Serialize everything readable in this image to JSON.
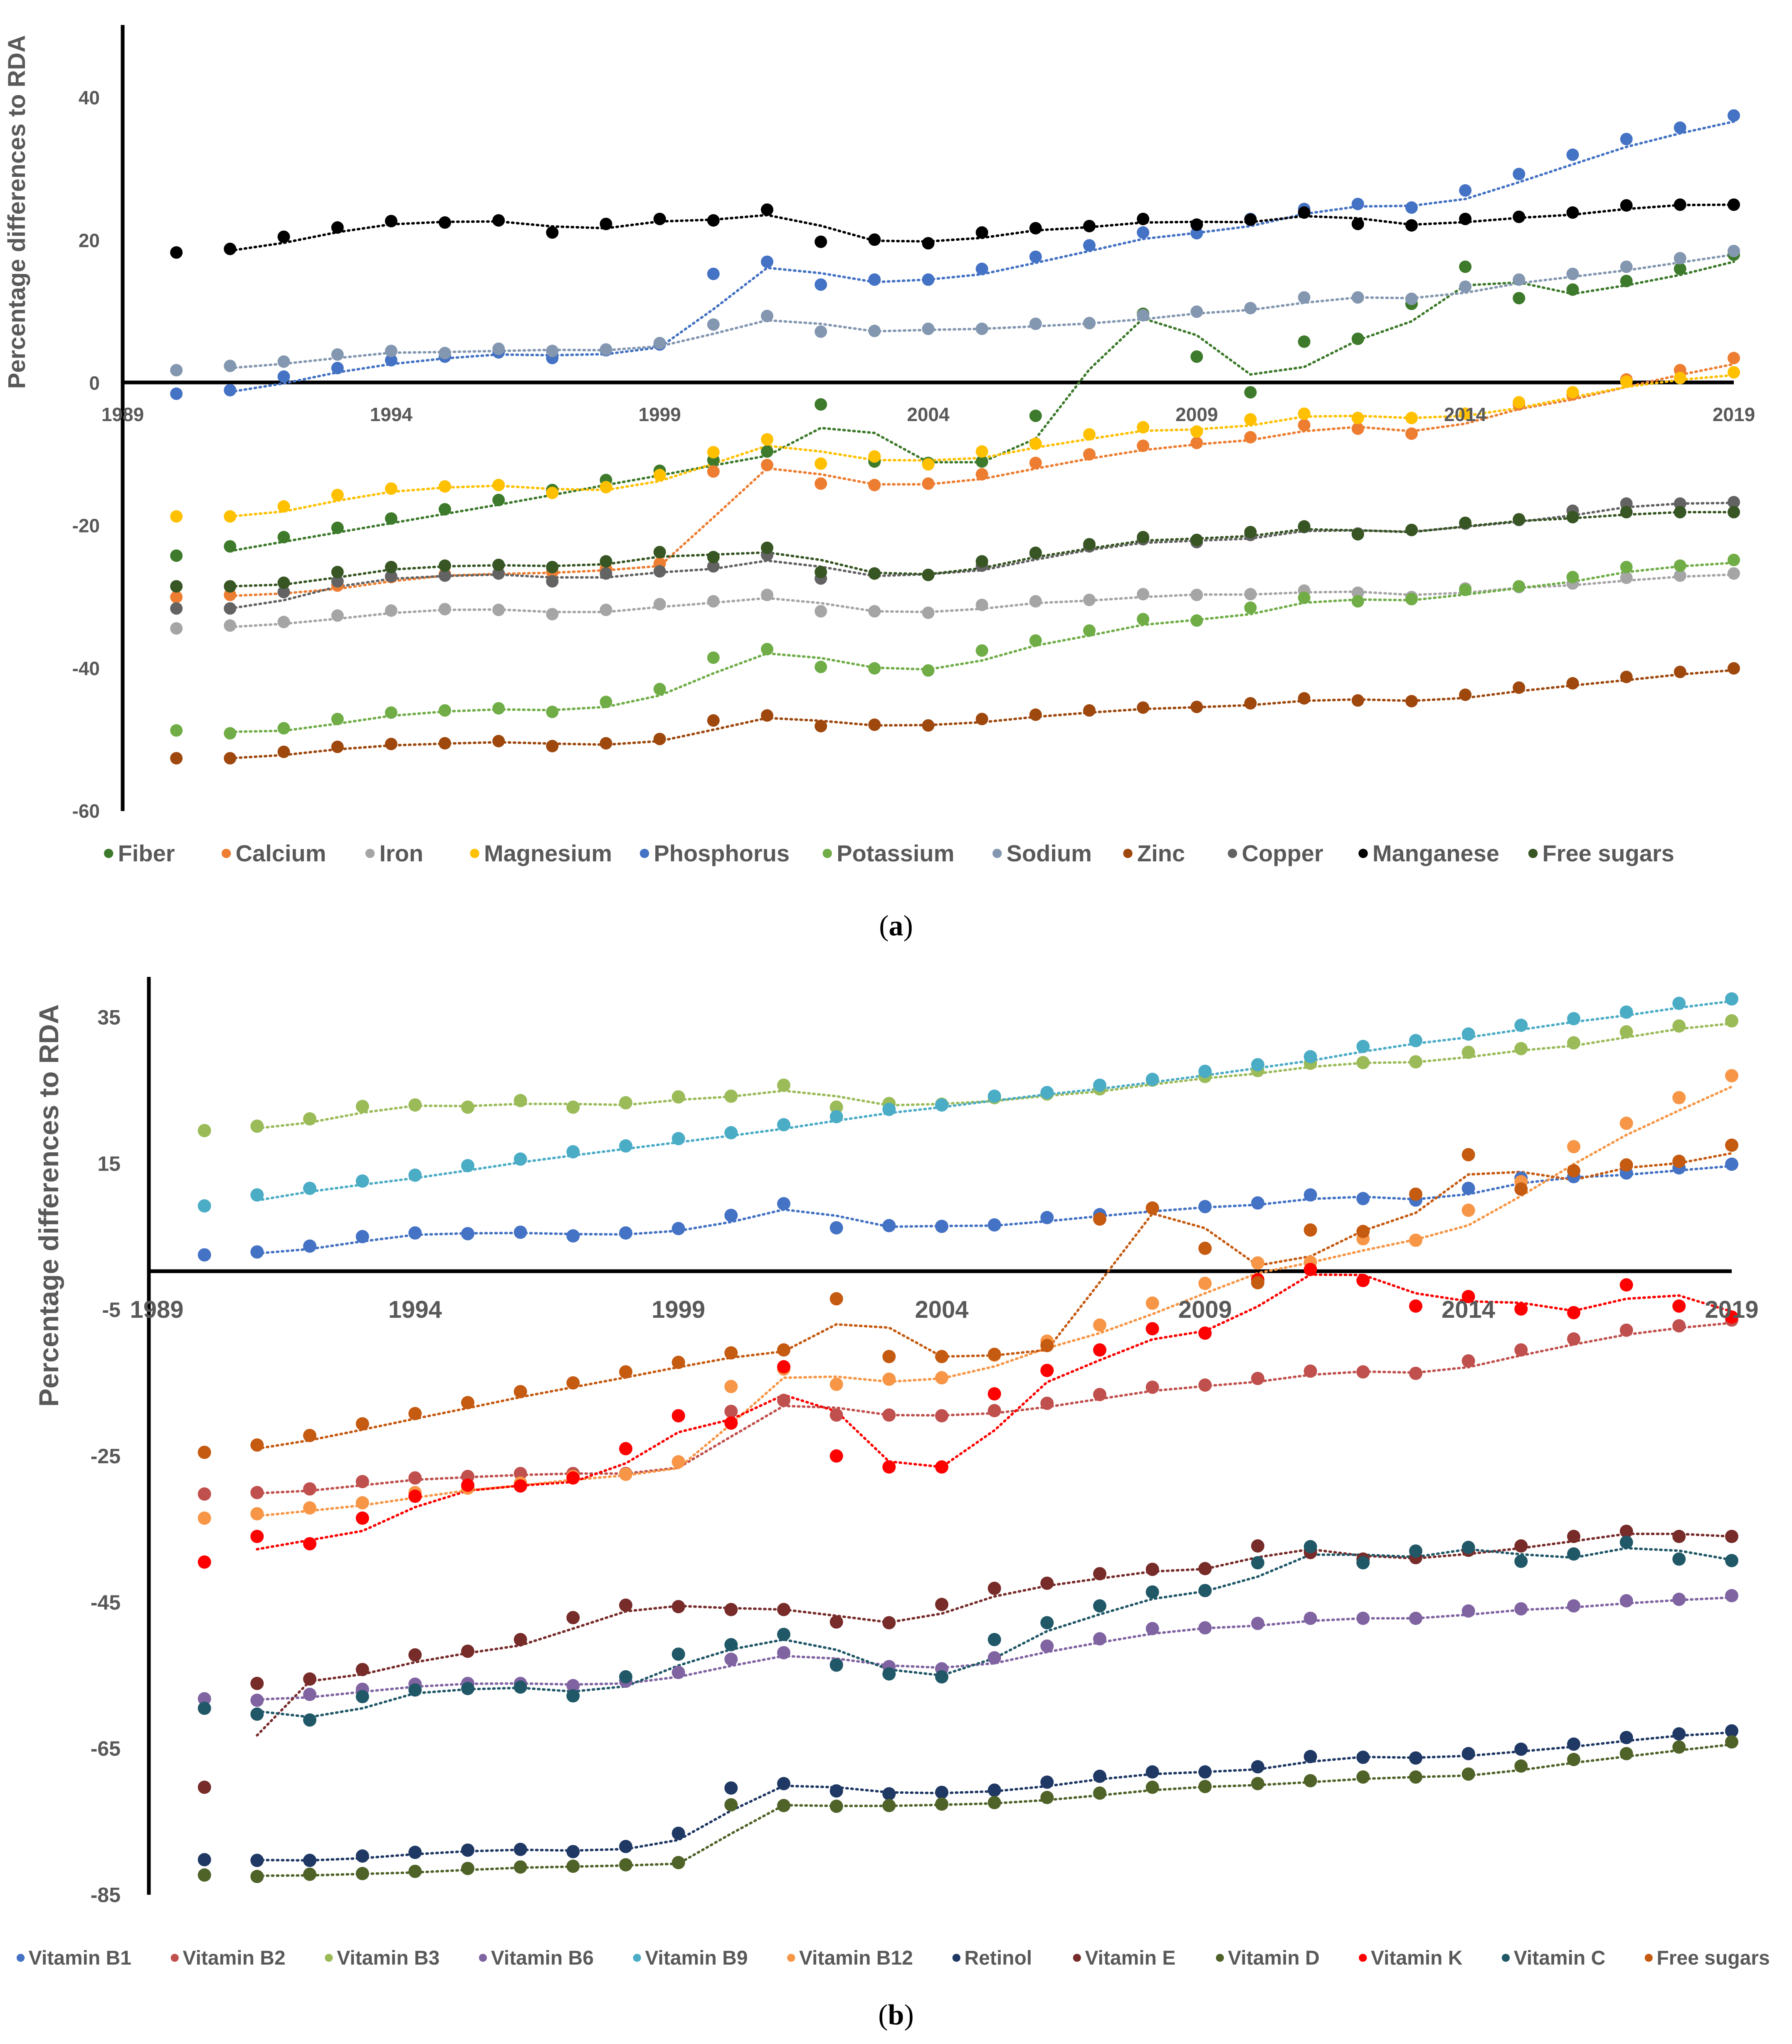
{
  "chart_data": [
    {
      "type": "scatter",
      "panel": "(a)",
      "caption_letter": "a",
      "ylabel": "Percentage differences to RDA",
      "xlim": [
        1989,
        2019
      ],
      "ylim": [
        -60,
        50
      ],
      "yticks": [
        40,
        20,
        0,
        -20,
        -40,
        -60
      ],
      "xticks": [
        1989,
        1994,
        1999,
        2004,
        2009,
        2014,
        2019
      ],
      "x": [
        1990,
        1991,
        1992,
        1993,
        1994,
        1995,
        1996,
        1997,
        1998,
        1999,
        2000,
        2001,
        2002,
        2003,
        2004,
        2005,
        2006,
        2007,
        2008,
        2009,
        2010,
        2011,
        2012,
        2013,
        2014,
        2015,
        2016,
        2017,
        2018,
        2019
      ],
      "trendline": "dotted",
      "legend": "bottom",
      "series": [
        {
          "name": "Fiber",
          "color": "#3d7a2b",
          "values": [
            -24.2,
            -22.9,
            -21.6,
            -20.3,
            -19,
            -17.7,
            -16.4,
            -15,
            -13.6,
            -12.3,
            -10.8,
            -9.6,
            -3,
            -11,
            -11.2,
            -11,
            -4.6,
            8.4,
            9.7,
            3.7,
            -1.3,
            5.8,
            6.2,
            11.1,
            16.3,
            11.9,
            13.1,
            14.3,
            16,
            18
          ]
        },
        {
          "name": "Calcium",
          "color": "#ed7d31",
          "values": [
            -30,
            -29.7,
            -29.3,
            -28.4,
            -27.2,
            -26.8,
            -26.7,
            -26.5,
            -26,
            -25.3,
            -12.4,
            -11.5,
            -14.1,
            -14.3,
            -14.1,
            -12.8,
            -11.2,
            -10,
            -8.8,
            -8.4,
            -7.6,
            -5.9,
            -6.4,
            -7.1,
            -4.3,
            -3,
            -1.6,
            0.5,
            1.8,
            3.5
          ]
        },
        {
          "name": "Iron",
          "color": "#a5a5a5",
          "values": [
            -34.4,
            -34,
            -33.5,
            -32.6,
            -31.9,
            -31.7,
            -31.8,
            -32.4,
            -31.8,
            -31,
            -30.6,
            -29.7,
            -32,
            -32,
            -32.2,
            -31.1,
            -30.6,
            -30.4,
            -29.6,
            -29.7,
            -29.6,
            -29.1,
            -29.4,
            -30,
            -28.8,
            -28.6,
            -28.1,
            -27.3,
            -27,
            -26.7
          ]
        },
        {
          "name": "Magnesium",
          "color": "#ffc000",
          "values": [
            -18.7,
            -18.7,
            -17.3,
            -15.7,
            -14.8,
            -14.5,
            -14.3,
            -15.4,
            -14.6,
            -12.9,
            -9.7,
            -7.9,
            -11.3,
            -10.3,
            -11.4,
            -9.6,
            -8.5,
            -7.2,
            -6.2,
            -6.8,
            -5.1,
            -4.3,
            -4.9,
            -4.9,
            -4.3,
            -2.7,
            -1.3,
            0.2,
            0.7,
            1.5
          ]
        },
        {
          "name": "Phosphorus",
          "color": "#4472c4",
          "values": [
            -1.5,
            -1,
            0.9,
            2.1,
            3.2,
            3.7,
            4.3,
            3.5,
            4.6,
            5.4,
            15.3,
            17,
            13.8,
            14.5,
            14.5,
            16,
            17.7,
            19.3,
            21.1,
            21,
            23,
            24.4,
            25.1,
            24.6,
            27,
            29.3,
            32,
            34.2,
            35.8,
            37.5
          ]
        },
        {
          "name": "Potassium",
          "color": "#70ad47",
          "values": [
            -48.7,
            -49.1,
            -48.4,
            -47.1,
            -46.2,
            -45.9,
            -45.6,
            -46.1,
            -44.7,
            -42.9,
            -38.5,
            -37.3,
            -39.8,
            -40,
            -40.3,
            -37.5,
            -36.1,
            -34.7,
            -33.1,
            -33.3,
            -31.5,
            -30.1,
            -30.6,
            -30.3,
            -29,
            -28.5,
            -27.2,
            -25.8,
            -25.6,
            -24.8
          ]
        },
        {
          "name": "Sodium",
          "color": "#8497b0",
          "values": [
            1.8,
            2.4,
            3,
            4,
            4.5,
            4.2,
            4.8,
            4.5,
            4.7,
            5.6,
            8.2,
            9.4,
            7.2,
            7.3,
            7.6,
            7.6,
            8.3,
            8.4,
            9.5,
            10,
            10.5,
            12,
            12,
            11.8,
            13.5,
            14.5,
            15.3,
            16.3,
            17.5,
            18.5
          ]
        },
        {
          "name": "Zinc",
          "color": "#9e480e",
          "values": [
            -52.6,
            -52.6,
            -51.7,
            -51,
            -50.6,
            -50.5,
            -50.2,
            -50.9,
            -50.5,
            -49.9,
            -47.3,
            -46.6,
            -48.1,
            -47.9,
            -48,
            -47.1,
            -46.5,
            -45.9,
            -45.5,
            -45.4,
            -44.9,
            -44.2,
            -44.5,
            -44.6,
            -43.7,
            -42.7,
            -42.1,
            -41.2,
            -40.5,
            -40
          ]
        },
        {
          "name": "Copper",
          "color": "#636363",
          "values": [
            -31.6,
            -31.6,
            -29.3,
            -27.8,
            -27.1,
            -27,
            -26.7,
            -27.8,
            -26.7,
            -26.4,
            -25.7,
            -24.1,
            -27.4,
            -26.7,
            -26.9,
            -25.6,
            -23.9,
            -22.9,
            -21.9,
            -22.3,
            -21.3,
            -20.2,
            -21.1,
            -20.6,
            -19.7,
            -19.2,
            -17.9,
            -16.9,
            -16.9,
            -16.7
          ]
        },
        {
          "name": "Manganese",
          "color": "#000000",
          "values": [
            18.3,
            18.8,
            20.5,
            21.8,
            22.7,
            22.5,
            22.8,
            21.1,
            22.3,
            23,
            22.8,
            24.3,
            19.8,
            20.1,
            19.6,
            21.1,
            21.7,
            22,
            23,
            22.2,
            22.9,
            23.9,
            22.3,
            22.1,
            23,
            23.3,
            23.9,
            24.9,
            25,
            25
          ]
        },
        {
          "name": "Free sugars",
          "color": "#375623",
          "values": [
            -28.5,
            -28.5,
            -28,
            -26.5,
            -25.8,
            -25.6,
            -25.5,
            -25.8,
            -25,
            -23.7,
            -24.4,
            -23.1,
            -26.5,
            -26.7,
            -26.9,
            -25,
            -23.8,
            -22.6,
            -21.6,
            -22,
            -20.9,
            -20.1,
            -21.2,
            -20.6,
            -19.6,
            -19.1,
            -18.8,
            -18.1,
            -18.1,
            -18.1
          ]
        }
      ]
    },
    {
      "type": "scatter",
      "panel": "(b)",
      "caption_letter": "b",
      "ylabel": "Percentage differences to RDA",
      "xlim": [
        1989,
        2019
      ],
      "ylim": [
        -85,
        40
      ],
      "yticks": [
        35,
        15,
        -5,
        -25,
        -45,
        -65,
        -85
      ],
      "xticks": [
        1989,
        1994,
        1999,
        2004,
        2009,
        2014,
        2019
      ],
      "x": [
        1990,
        1991,
        1992,
        1993,
        1994,
        1995,
        1996,
        1997,
        1998,
        1999,
        2000,
        2001,
        2002,
        2003,
        2004,
        2005,
        2006,
        2007,
        2008,
        2009,
        2010,
        2011,
        2012,
        2013,
        2014,
        2015,
        2016,
        2017,
        2018,
        2019
      ],
      "trendline": "dotted",
      "legend": "bottom",
      "series": [
        {
          "name": "Vitamin B1",
          "color": "#4472c4",
          "values": [
            2.5,
            2.9,
            3.7,
            5,
            5.5,
            5.4,
            5.6,
            5.1,
            5.5,
            6.1,
            7.9,
            9.5,
            6.2,
            6.5,
            6.4,
            6.6,
            7.6,
            8,
            8.9,
            9.1,
            9.6,
            10.7,
            10.2,
            10,
            11.6,
            13,
            13.2,
            13.7,
            14.4,
            14.9
          ]
        },
        {
          "name": "Vitamin B2",
          "color": "#c0504d",
          "values": [
            -30.2,
            -30,
            -29.5,
            -28.5,
            -28,
            -27.8,
            -27.4,
            -27.4,
            -27.4,
            -25.8,
            -18.9,
            -17.4,
            -19.4,
            -19.4,
            -19.5,
            -18.8,
            -17.8,
            -16.6,
            -15.6,
            -15.3,
            -14.4,
            -13.4,
            -13.5,
            -13.7,
            -12,
            -10.5,
            -9,
            -7.8,
            -7.2,
            -6.4
          ]
        },
        {
          "name": "Vitamin B3",
          "color": "#9bbb59",
          "values": [
            19.5,
            20.1,
            21.1,
            22.8,
            23,
            22.7,
            23.6,
            22.7,
            23.3,
            24.1,
            24.2,
            25.7,
            22.7,
            23.2,
            23.1,
            24,
            24.5,
            25.2,
            26.4,
            26.9,
            27.7,
            28.7,
            28.8,
            28.9,
            30.2,
            30.7,
            31.5,
            33,
            33.8,
            34.5
          ]
        },
        {
          "name": "Vitamin B6",
          "color": "#8064a2",
          "values": [
            -58.2,
            -58.4,
            -57.6,
            -56.9,
            -56.2,
            -56.1,
            -56.1,
            -56.4,
            -55.8,
            -54.6,
            -52.8,
            -51.9,
            -53.5,
            -53.8,
            -54.1,
            -52.6,
            -51,
            -50,
            -48.6,
            -48.5,
            -47.9,
            -47.2,
            -47.2,
            -47.2,
            -46.2,
            -45.9,
            -45.5,
            -44.8,
            -44.6,
            -44.1
          ]
        },
        {
          "name": "Vitamin B9",
          "color": "#4bacc6",
          "values": [
            9.2,
            10.7,
            11.6,
            12.6,
            13.4,
            14.7,
            15.6,
            16.6,
            17.4,
            18.4,
            19.2,
            20.3,
            21.4,
            22.4,
            23,
            24.2,
            24.7,
            25.7,
            26.5,
            27.6,
            28.5,
            29.6,
            31,
            31.8,
            32.7,
            33.9,
            34.8,
            35.7,
            36.9,
            37.5
          ]
        },
        {
          "name": "Vitamin B12",
          "color": "#f79646",
          "values": [
            -33.5,
            -32.9,
            -32.1,
            -31.4,
            -30,
            -29.4,
            -28.7,
            -27.8,
            -27.5,
            -25.8,
            -15.5,
            -13.1,
            -15.2,
            -14.5,
            -14.3,
            -11.2,
            -9.3,
            -7.1,
            -4.1,
            -1.4,
            1.4,
            1.5,
            4.7,
            4.5,
            8.6,
            12.5,
            17.3,
            20.5,
            24,
            27
          ]
        },
        {
          "name": "Retinol",
          "color": "#1f3864",
          "values": [
            -80.2,
            -80.3,
            -80.3,
            -79.7,
            -79.2,
            -78.9,
            -78.8,
            -79.1,
            -78.4,
            -76.6,
            -70.4,
            -69.8,
            -70.8,
            -71.2,
            -71,
            -70.7,
            -69.6,
            -68.8,
            -68.2,
            -68.2,
            -67.5,
            -66.1,
            -66.2,
            -66.3,
            -65.7,
            -65.1,
            -64.4,
            -63.5,
            -63,
            -62.6
          ]
        },
        {
          "name": "Vitamin E",
          "color": "#772c2a",
          "values": [
            -70.3,
            -56.1,
            -55.5,
            -54.2,
            -52.2,
            -51.7,
            -50.1,
            -47.1,
            -45.4,
            -45.6,
            -46,
            -46,
            -47.7,
            -47.8,
            -45.3,
            -43.1,
            -42.4,
            -41.1,
            -40.5,
            -40.4,
            -37.3,
            -38.2,
            -39.1,
            -38.9,
            -37.9,
            -37.3,
            -36,
            -35.3,
            -36,
            -36
          ]
        },
        {
          "name": "Vitamin D",
          "color": "#4f6228",
          "values": [
            -82.3,
            -82.5,
            -82.2,
            -82.1,
            -81.8,
            -81.4,
            -81.2,
            -81.1,
            -80.9,
            -80.6,
            -72.7,
            -72.8,
            -72.9,
            -72.8,
            -72.6,
            -72.4,
            -71.7,
            -71.1,
            -70.3,
            -70.2,
            -69.8,
            -69.4,
            -68.9,
            -68.9,
            -68.5,
            -67.4,
            -66.5,
            -65.7,
            -64.8,
            -64.1
          ]
        },
        {
          "name": "Vitamin K",
          "color": "#ff0000",
          "values": [
            -39.5,
            -36,
            -37,
            -33.5,
            -30.5,
            -29,
            -29.1,
            -28,
            -24,
            -19.5,
            -20.5,
            -12.8,
            -25,
            -26.5,
            -26.5,
            -16.5,
            -13.3,
            -10.5,
            -7.6,
            -8.2,
            -0.9,
            0.5,
            -1,
            -4.5,
            -3.2,
            -4.9,
            -5.4,
            -1.6,
            -4.5,
            -6
          ]
        },
        {
          "name": "Vitamin C",
          "color": "#215868",
          "values": [
            -59.5,
            -60.3,
            -61.1,
            -57.9,
            -57,
            -56.8,
            -56.6,
            -57.8,
            -55.2,
            -52.1,
            -50.8,
            -49.4,
            -53.6,
            -54.8,
            -55.2,
            -50.1,
            -47.8,
            -45.5,
            -43.6,
            -43.4,
            -39.6,
            -37.4,
            -39.6,
            -38,
            -37.5,
            -39.4,
            -38.4,
            -36.8,
            -39.1,
            -39.3
          ]
        },
        {
          "name": "Free sugars",
          "color": "#c55a11",
          "values": [
            -24.5,
            -23.5,
            -22.2,
            -20.6,
            -19.2,
            -17.7,
            -16.2,
            -15,
            -13.5,
            -12.2,
            -10.9,
            -10.5,
            -3.5,
            -11.4,
            -11.4,
            -11.1,
            -9.9,
            7.4,
            8.9,
            3.4,
            -1.3,
            5.9,
            5.7,
            10.8,
            16.2,
            11.5,
            14,
            14.8,
            15.3,
            17.5
          ]
        }
      ]
    }
  ]
}
